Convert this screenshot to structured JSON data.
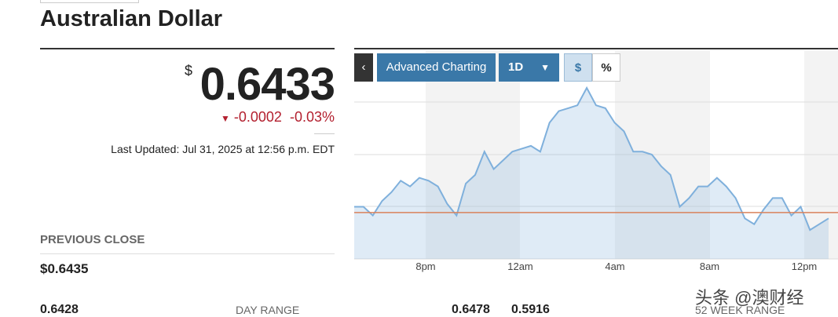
{
  "header": {
    "title": "Australian Dollar"
  },
  "quote": {
    "currency": "$",
    "price": "0.6433",
    "change": "-0.0002",
    "change_percent": "-0.03%",
    "last_updated": "Last Updated: Jul 31, 2025 at 12:56 p.m. EDT"
  },
  "previous_close": {
    "label": "PREVIOUS CLOSE",
    "value": "$0.6435"
  },
  "ranges": {
    "day_low": "0.6428",
    "day_label": "DAY RANGE",
    "day_high": "0.6478",
    "week52_low": "0.5916",
    "week52_label": "52 WEEK RANGE"
  },
  "toolbar": {
    "advanced": "Advanced Charting",
    "interval": "1D",
    "dollar": "$",
    "percent": "%"
  },
  "watermark": "头条 @澳财经",
  "chart_data": {
    "type": "line",
    "xticks": [
      "8pm",
      "12am",
      "4am",
      "8am",
      "12pm"
    ],
    "values": [
      0.6437,
      0.6437,
      0.6434,
      0.6439,
      0.6442,
      0.6446,
      0.6444,
      0.6447,
      0.6446,
      0.6444,
      0.6438,
      0.6434,
      0.6445,
      0.6448,
      0.6456,
      0.645,
      0.6453,
      0.6456,
      0.6457,
      0.6458,
      0.6456,
      0.6466,
      0.647,
      0.6471,
      0.6472,
      0.6478,
      0.6472,
      0.6471,
      0.6466,
      0.6463,
      0.6456,
      0.6456,
      0.6455,
      0.6451,
      0.6448,
      0.6437,
      0.644,
      0.6444,
      0.6444,
      0.6447,
      0.6444,
      0.644,
      0.6433,
      0.6431,
      0.6436,
      0.644,
      0.644,
      0.6434,
      0.6437,
      0.6429,
      0.6431,
      0.6433
    ],
    "color": "#7fb0dc",
    "reference_line": 0.6435,
    "reference_color": "#d9825b",
    "ylim": [
      0.6419,
      0.6491
    ]
  }
}
